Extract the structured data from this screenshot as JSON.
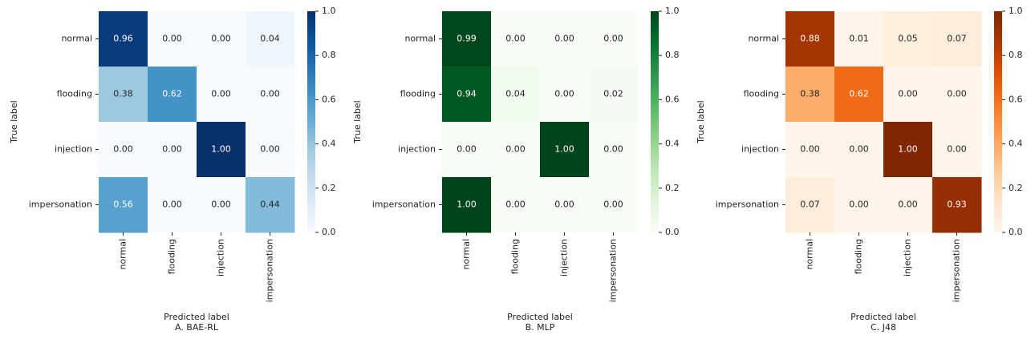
{
  "chart_data": [
    {
      "type": "heatmap",
      "colormap": "Blues",
      "caption": "A. BAE-RL",
      "xlabel": "Predicted label",
      "ylabel": "True label",
      "categories": [
        "normal",
        "flooding",
        "injection",
        "impersonation"
      ],
      "values": [
        [
          0.96,
          0,
          0,
          0.04
        ],
        [
          0.38,
          0.62,
          0,
          0
        ],
        [
          0,
          0,
          1,
          0
        ],
        [
          0.56,
          0,
          0,
          0.44
        ]
      ],
      "value_labels": [
        [
          "0.96",
          "0.00",
          "0.00",
          "0.04"
        ],
        [
          "0.38",
          "0.62",
          "0.00",
          "0.00"
        ],
        [
          "0.00",
          "0.00",
          "1.00",
          "0.00"
        ],
        [
          "0.56",
          "0.00",
          "0.00",
          "0.44"
        ]
      ],
      "clim": [
        0,
        1
      ],
      "cticks": [
        {
          "value": 0,
          "label": "0.0"
        },
        {
          "value": 0.2,
          "label": "0.2"
        },
        {
          "value": 0.4,
          "label": "0.4"
        },
        {
          "value": 0.6,
          "label": "0.6"
        },
        {
          "value": 0.8,
          "label": "0.8"
        },
        {
          "value": 1,
          "label": "1.0"
        }
      ]
    },
    {
      "type": "heatmap",
      "colormap": "Greens",
      "caption": "B. MLP",
      "xlabel": "Predicted label",
      "ylabel": "True label",
      "categories": [
        "normal",
        "flooding",
        "injection",
        "impersonation"
      ],
      "values": [
        [
          0.99,
          0,
          0,
          0
        ],
        [
          0.94,
          0.04,
          0,
          0.02
        ],
        [
          0,
          0,
          1,
          0
        ],
        [
          1,
          0,
          0,
          0
        ]
      ],
      "value_labels": [
        [
          "0.99",
          "0.00",
          "0.00",
          "0.00"
        ],
        [
          "0.94",
          "0.04",
          "0.00",
          "0.02"
        ],
        [
          "0.00",
          "0.00",
          "1.00",
          "0.00"
        ],
        [
          "1.00",
          "0.00",
          "0.00",
          "0.00"
        ]
      ],
      "clim": [
        0,
        1
      ],
      "cticks": [
        {
          "value": 0,
          "label": "0.0"
        },
        {
          "value": 0.2,
          "label": "0.2"
        },
        {
          "value": 0.4,
          "label": "0.4"
        },
        {
          "value": 0.6,
          "label": "0.6"
        },
        {
          "value": 0.8,
          "label": "0.8"
        },
        {
          "value": 1,
          "label": "1.0"
        }
      ]
    },
    {
      "type": "heatmap",
      "colormap": "Oranges",
      "caption": "C. J48",
      "xlabel": "Predicted label",
      "ylabel": "True label",
      "categories": [
        "normal",
        "flooding",
        "injection",
        "impersonation"
      ],
      "values": [
        [
          0.88,
          0.01,
          0.05,
          0.07
        ],
        [
          0.38,
          0.62,
          0,
          0
        ],
        [
          0,
          0,
          1,
          0
        ],
        [
          0.07,
          0,
          0,
          0.93
        ]
      ],
      "value_labels": [
        [
          "0.88",
          "0.01",
          "0.05",
          "0.07"
        ],
        [
          "0.38",
          "0.62",
          "0.00",
          "0.00"
        ],
        [
          "0.00",
          "0.00",
          "1.00",
          "0.00"
        ],
        [
          "0.07",
          "0.00",
          "0.00",
          "0.93"
        ]
      ],
      "clim": [
        0,
        1
      ],
      "cticks": [
        {
          "value": 0,
          "label": "0.0"
        },
        {
          "value": 0.2,
          "label": "0.2"
        },
        {
          "value": 0.4,
          "label": "0.4"
        },
        {
          "value": 0.6,
          "label": "0.6"
        },
        {
          "value": 0.8,
          "label": "0.8"
        },
        {
          "value": 1,
          "label": "1.0"
        }
      ]
    }
  ]
}
